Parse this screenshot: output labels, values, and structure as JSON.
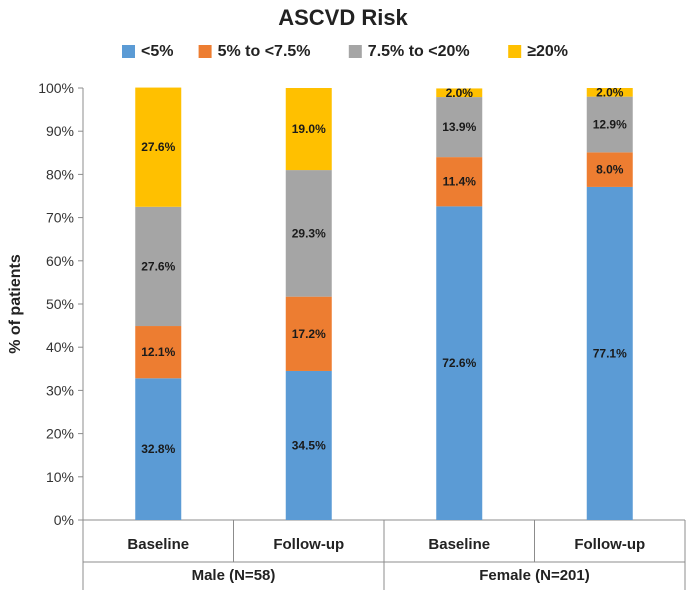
{
  "chart_data": {
    "type": "bar",
    "stacked": true,
    "title": "ASCVD Risk",
    "ylabel": "% of patients",
    "xlabel": "",
    "ylim": [
      0,
      100
    ],
    "yticks": [
      0,
      10,
      20,
      30,
      40,
      50,
      60,
      70,
      80,
      90,
      100
    ],
    "ytick_suffix": "%",
    "grid": false,
    "legend_position": "top",
    "categories": [
      "Baseline",
      "Follow-up",
      "Baseline",
      "Follow-up"
    ],
    "groups": [
      {
        "label": "Male (N=58)",
        "categories": [
          0,
          1
        ]
      },
      {
        "label": "Female (N=201)",
        "categories": [
          2,
          3
        ]
      }
    ],
    "series": [
      {
        "name": "<5%",
        "color": "#5B9BD5",
        "values": [
          32.8,
          34.5,
          72.6,
          77.1
        ],
        "labels": [
          "32.8%",
          "34.5%",
          "72.6%",
          "77.1%"
        ]
      },
      {
        "name": "5% to <7.5%",
        "color": "#ED7D31",
        "values": [
          12.1,
          17.2,
          11.4,
          8.0
        ],
        "labels": [
          "12.1%",
          "17.2%",
          "11.4%",
          "8.0%"
        ]
      },
      {
        "name": "7.5% to <20%",
        "color": "#A5A5A5",
        "values": [
          27.6,
          29.3,
          13.9,
          12.9
        ],
        "labels": [
          "27.6%",
          "29.3%",
          "13.9%",
          "12.9%"
        ]
      },
      {
        "name": "≥20%",
        "color": "#FFC000",
        "values": [
          27.6,
          19.0,
          2.0,
          2.0
        ],
        "labels": [
          "27.6%",
          "19.0%",
          "2.0%",
          "2.0%"
        ]
      }
    ]
  }
}
